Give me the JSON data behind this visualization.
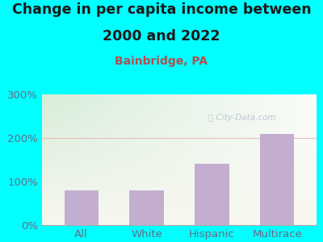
{
  "title_line1": "Change in per capita income between",
  "title_line2": "2000 and 2022",
  "subtitle": "Bainbridge, PA",
  "categories": [
    "All",
    "White",
    "Hispanic",
    "Multirace"
  ],
  "values": [
    80,
    80,
    140,
    210
  ],
  "bar_color": "#c4aed0",
  "background_outer": "#00FFFF",
  "bg_gradient_top": "#d4edda",
  "bg_gradient_bottom": "#f5f5ee",
  "title_color": "#1a1a1a",
  "subtitle_color": "#b05050",
  "tick_color": "#6a6a8a",
  "watermark_color": "#b8bece",
  "grid_line_color": "#e8b8b8",
  "ylim": [
    0,
    300
  ],
  "yticks": [
    0,
    100,
    200,
    300
  ],
  "ytick_labels": [
    "0%",
    "100%",
    "200%",
    "300%"
  ],
  "title_fontsize": 12.5,
  "subtitle_fontsize": 10,
  "tick_fontsize": 9.5
}
